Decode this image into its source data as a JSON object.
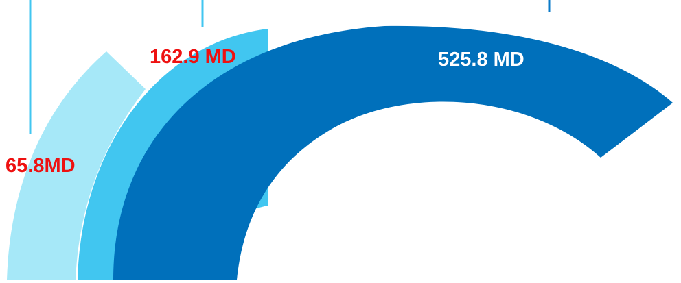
{
  "chart_data": {
    "type": "radial-bar",
    "series": [
      {
        "value": 65.8,
        "label": "65.8MD",
        "color": "#a6e8f8",
        "label_color": "#ee1111"
      },
      {
        "value": 162.9,
        "label": "162.9 MD",
        "color": "#41c6f0",
        "label_color": "#ee1111"
      },
      {
        "value": 525.8,
        "label": "525.8 MD",
        "color": "#0070bb",
        "label_color": "#ffffff"
      }
    ],
    "unit": "MD",
    "leader_line_color": "#41c6f0",
    "leader_line_color_dark": "#0a7ac8"
  }
}
